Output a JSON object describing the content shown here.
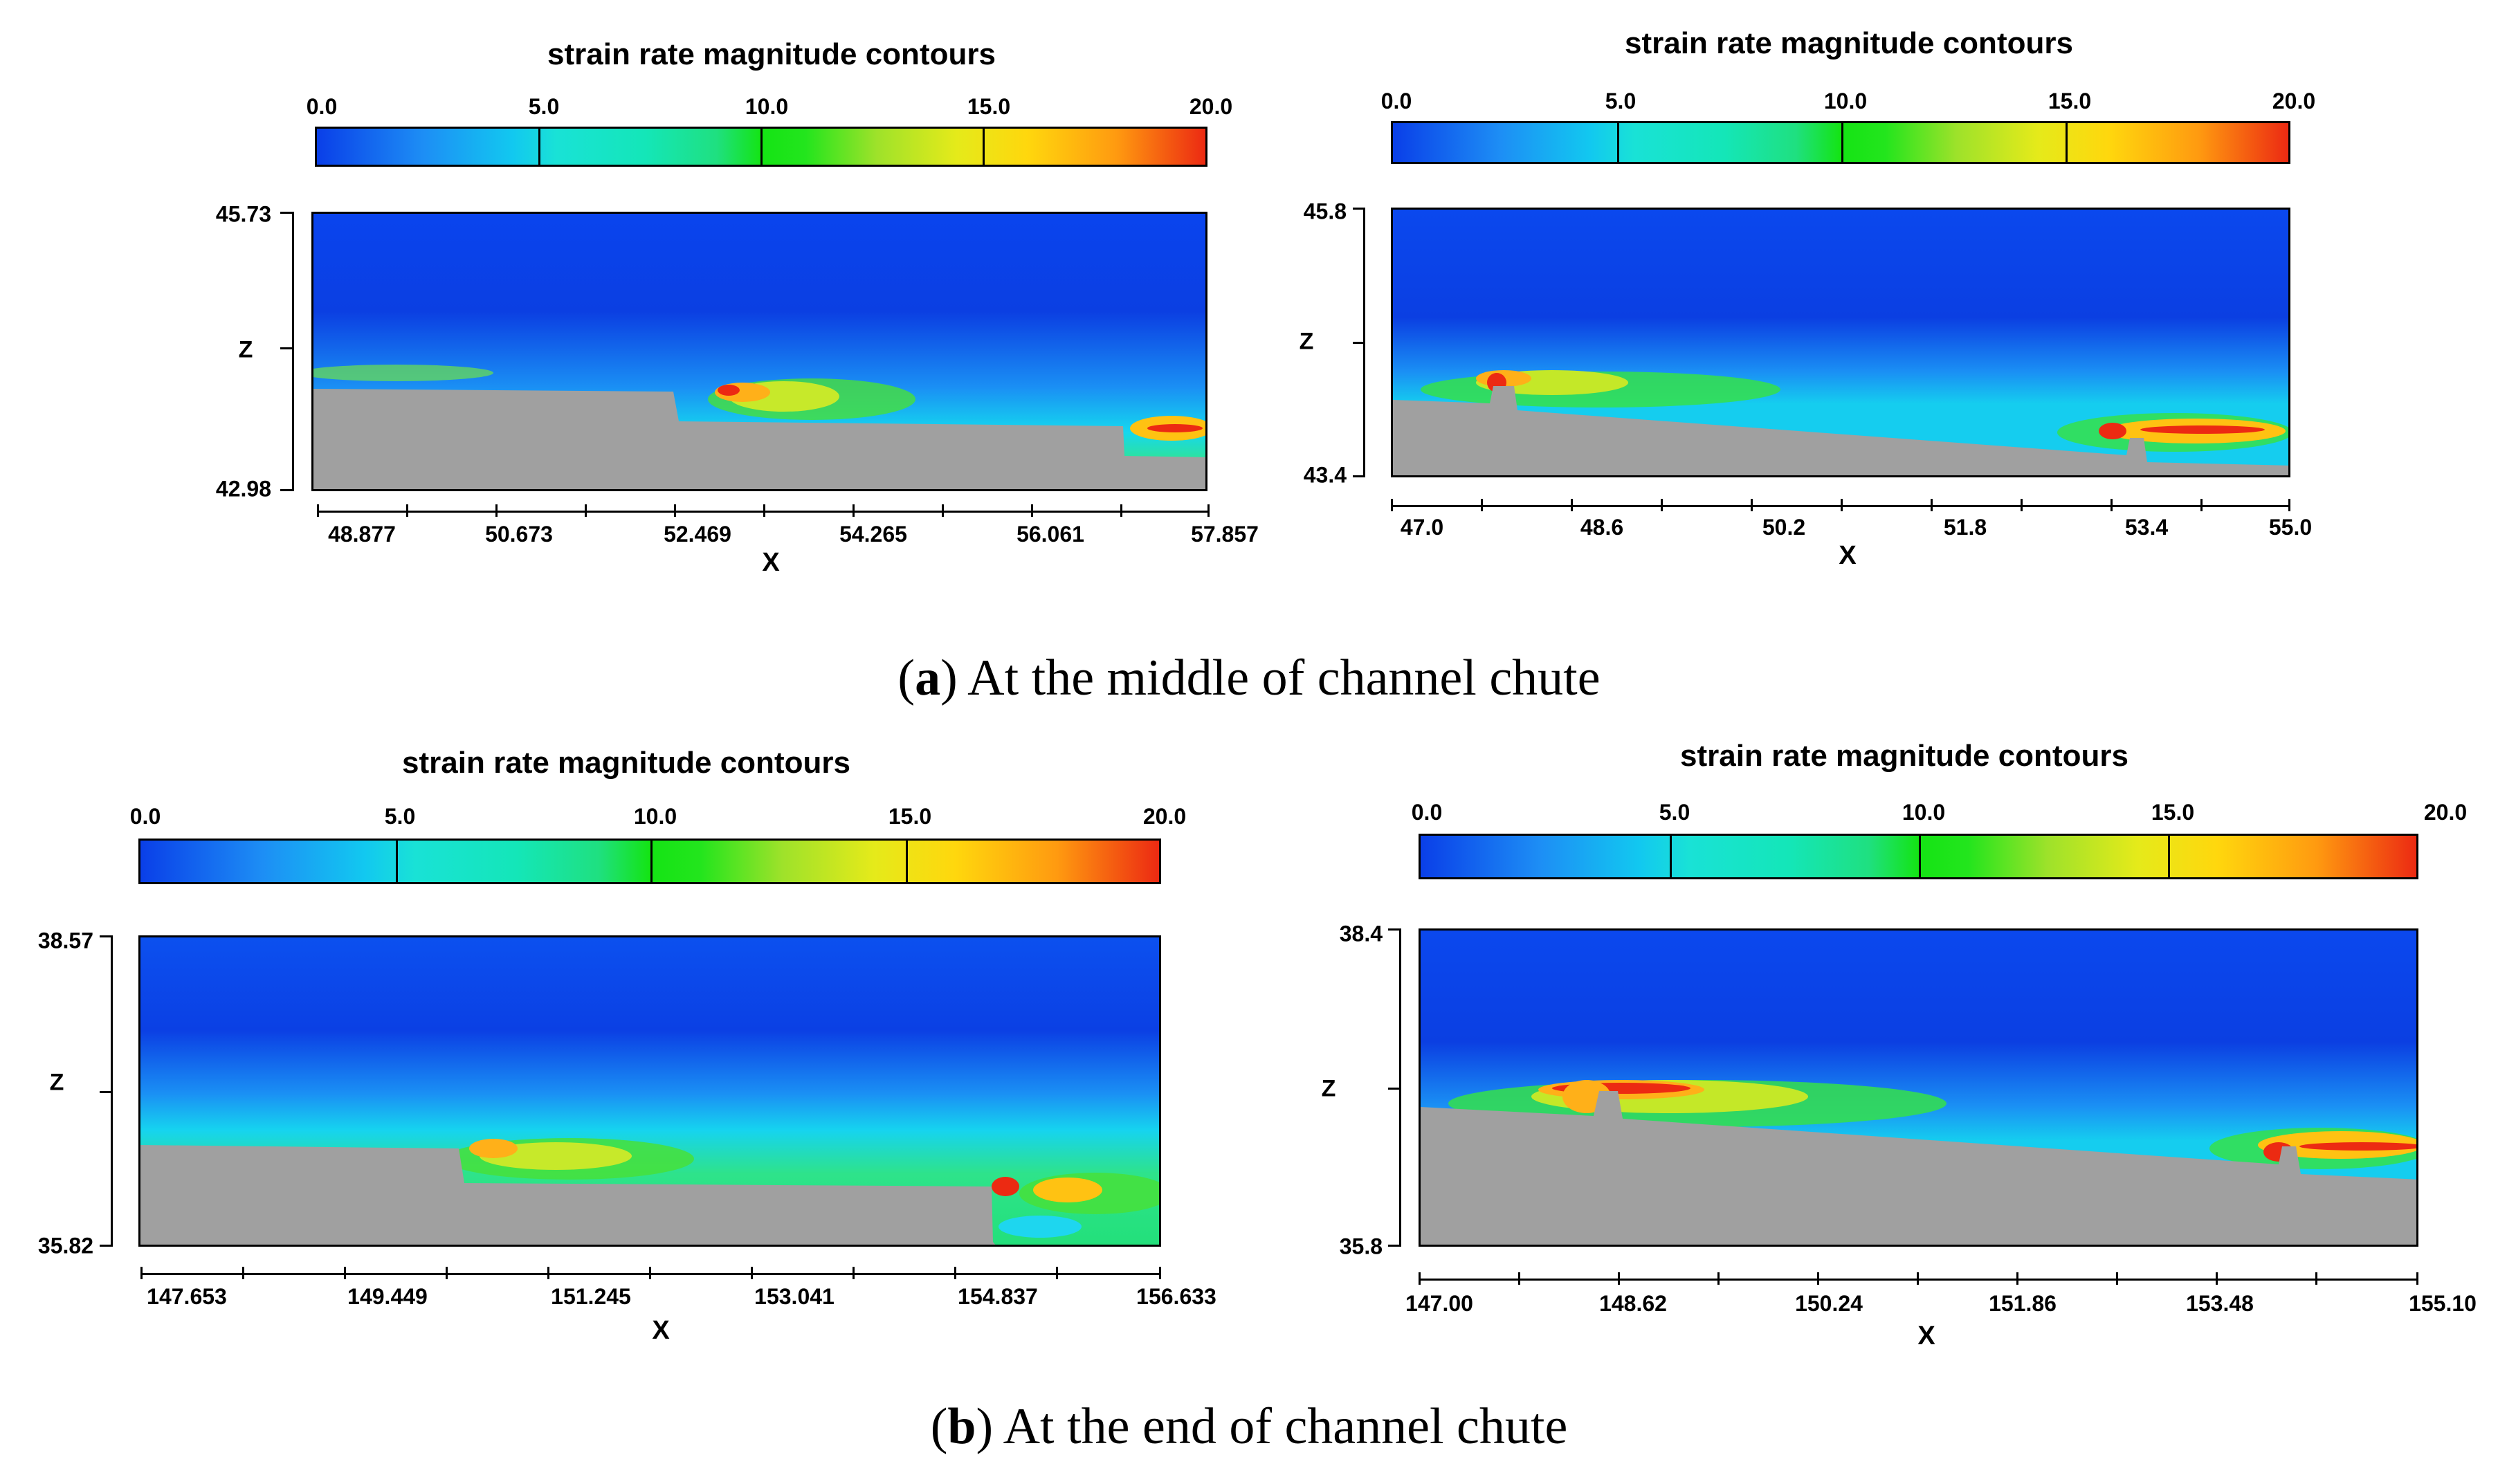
{
  "panels": {
    "a_left": {
      "title": "strain rate magnitude contours",
      "colorbar_ticks": [
        "0.0",
        "5.0",
        "10.0",
        "15.0",
        "20.0"
      ],
      "y_top": "45.73",
      "y_bottom": "42.98",
      "y_name": "Z",
      "x_ticks": [
        "48.877",
        "50.673",
        "52.469",
        "54.265",
        "56.061",
        "57.857"
      ],
      "x_name": "X"
    },
    "a_right": {
      "title": "strain rate magnitude contours",
      "colorbar_ticks": [
        "0.0",
        "5.0",
        "10.0",
        "15.0",
        "20.0"
      ],
      "y_top": "45.8",
      "y_bottom": "43.4",
      "y_name": "Z",
      "x_ticks": [
        "47.0",
        "48.6",
        "50.2",
        "51.8",
        "53.4",
        "55.0"
      ],
      "x_name": "X"
    },
    "b_left": {
      "title": "strain rate magnitude contours",
      "colorbar_ticks": [
        "0.0",
        "5.0",
        "10.0",
        "15.0",
        "20.0"
      ],
      "y_top": "38.57",
      "y_bottom": "35.82",
      "y_name": "Z",
      "x_ticks": [
        "147.653",
        "149.449",
        "151.245",
        "153.041",
        "154.837",
        "156.633"
      ],
      "x_name": "X"
    },
    "b_right": {
      "title": "strain rate magnitude contours",
      "colorbar_ticks": [
        "0.0",
        "5.0",
        "10.0",
        "15.0",
        "20.0"
      ],
      "y_top": "38.4",
      "y_bottom": "35.8",
      "y_name": "Z",
      "x_ticks": [
        "147.00",
        "148.62",
        "150.24",
        "151.86",
        "153.48",
        "155.10"
      ],
      "x_name": "X"
    }
  },
  "captions": {
    "a": {
      "label": "a",
      "text": "At the middle of channel chute"
    },
    "b": {
      "label": "b",
      "text": "At the end of channel chute"
    }
  },
  "colors": {
    "ground": "#a0a0a0",
    "low": "#0a3fe8",
    "high": "#ec2a12"
  }
}
